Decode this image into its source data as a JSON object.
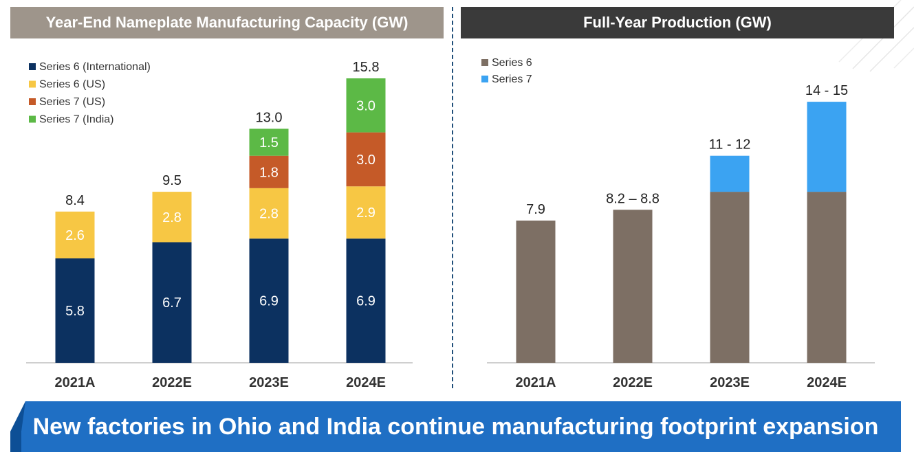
{
  "colors": {
    "left_header_bg": "#9e958b",
    "right_header_bg": "#3a3a3a",
    "footer_bg": "#1f6fc4",
    "footer_shadow": "#0d4f96",
    "divider": "#1f4e79",
    "axis": "#bfbfbf",
    "label_dark": "#222222",
    "label_light": "#ffffff"
  },
  "header": {
    "left_title": "Year-End Nameplate Manufacturing Capacity (GW)",
    "right_title": "Full-Year Production (GW)"
  },
  "footer": {
    "message": "New factories in Ohio and India continue manufacturing footprint expansion"
  },
  "chart_data": [
    {
      "type": "bar",
      "stacked": true,
      "title": "Year-End Nameplate Manufacturing Capacity (GW)",
      "categories": [
        "2021A",
        "2022E",
        "2023E",
        "2024E"
      ],
      "series": [
        {
          "name": "Series 6 (International)",
          "color": "#0c3160",
          "values": [
            5.8,
            6.7,
            6.9,
            6.9
          ],
          "labels": [
            "5.8",
            "6.7",
            "6.9",
            "6.9"
          ]
        },
        {
          "name": "Series 6 (US)",
          "color": "#f7c744",
          "values": [
            2.6,
            2.8,
            2.8,
            2.9
          ],
          "labels": [
            "2.6",
            "2.8",
            "2.8",
            "2.9"
          ]
        },
        {
          "name": "Series 7 (US)",
          "color": "#c55a28",
          "values": [
            0,
            0,
            1.8,
            3.0
          ],
          "labels": [
            "",
            "",
            "1.8",
            "3.0"
          ]
        },
        {
          "name": "Series 7 (India)",
          "color": "#5cb946",
          "values": [
            0,
            0,
            1.5,
            3.0
          ],
          "labels": [
            "",
            "",
            "1.5",
            "3.0"
          ]
        }
      ],
      "totals": [
        "8.4",
        "9.5",
        "13.0",
        "15.8"
      ],
      "ylim": [
        0,
        15.8
      ],
      "legend": "top-left",
      "xlabel": "",
      "ylabel": ""
    },
    {
      "type": "bar",
      "stacked": true,
      "title": "Full-Year Production (GW)",
      "categories": [
        "2021A",
        "2022E",
        "2023E",
        "2024E"
      ],
      "series": [
        {
          "name": "Series 6",
          "color": "#7d6f64",
          "values": [
            7.9,
            8.5,
            9.5,
            9.5
          ]
        },
        {
          "name": "Series 7",
          "color": "#3ba3f2",
          "values": [
            0,
            0,
            2.0,
            5.0
          ]
        }
      ],
      "totals": [
        "7.9",
        "8.2 – 8.8",
        "11 - 12",
        "14 - 15"
      ],
      "ylim": [
        0,
        15.8
      ],
      "legend": "top-left",
      "xlabel": "",
      "ylabel": ""
    }
  ]
}
